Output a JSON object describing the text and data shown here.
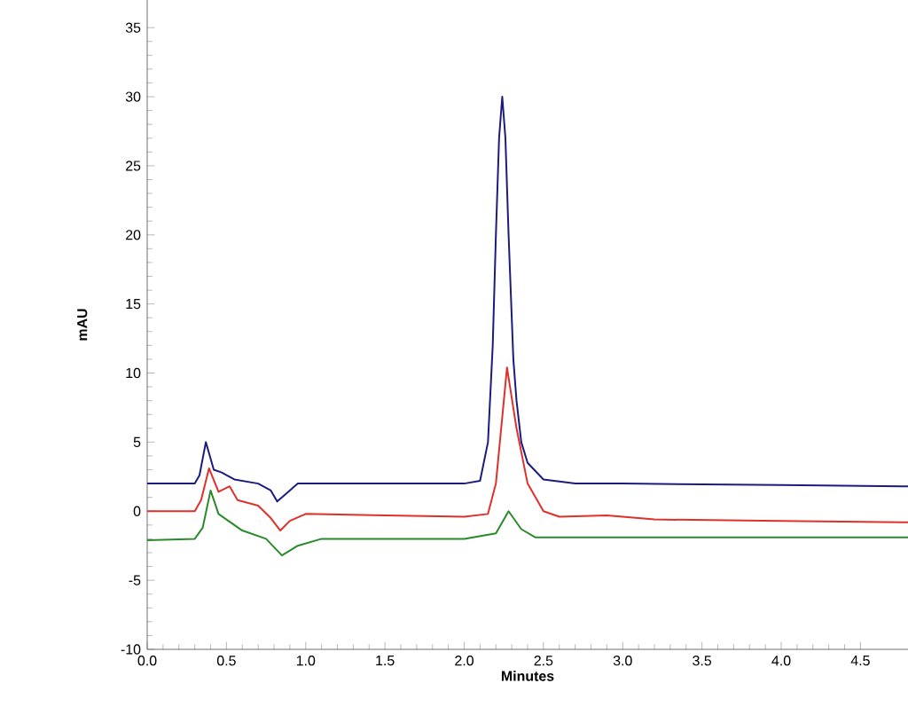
{
  "chart_data": {
    "type": "line",
    "xlabel": "Minutes",
    "ylabel": "mAU",
    "xlim": [
      0,
      4.8
    ],
    "ylim": [
      -10,
      37
    ],
    "xticks": [
      {
        "value": 0,
        "label": "0.0"
      },
      0.5,
      {
        "value": 1,
        "label": "1.0"
      },
      1.5,
      {
        "value": 2,
        "label": "2.0"
      },
      2.5,
      {
        "value": 3,
        "label": "3.0"
      },
      3.5,
      {
        "value": 4,
        "label": "4.0"
      },
      4.5
    ],
    "yticks": [
      -10,
      -5,
      0,
      5,
      10,
      15,
      20,
      25,
      30,
      35
    ],
    "grid": false,
    "marker": "none",
    "line_style": "solid",
    "series": [
      {
        "color": "#1c1c7e",
        "x": [
          0,
          0.3,
          0.33,
          0.37,
          0.42,
          0.47,
          0.55,
          0.7,
          0.78,
          0.82,
          0.88,
          0.95,
          1.5,
          2.0,
          2.1,
          2.15,
          2.18,
          2.2,
          2.22,
          2.24,
          2.26,
          2.28,
          2.31,
          2.33,
          2.36,
          2.4,
          2.5,
          2.7,
          3.0,
          4.0,
          4.8
        ],
        "values": [
          2.0,
          2.0,
          2.6,
          5.0,
          3.0,
          2.8,
          2.3,
          2.0,
          1.5,
          0.7,
          1.3,
          2.0,
          2.0,
          2.0,
          2.2,
          5,
          12,
          20,
          27,
          30,
          27,
          20,
          11,
          8,
          5,
          3.5,
          2.3,
          2.0,
          2.0,
          1.9,
          1.8
        ]
      },
      {
        "color": "#e0302a",
        "x": [
          0,
          0.3,
          0.34,
          0.39,
          0.45,
          0.52,
          0.57,
          0.7,
          0.78,
          0.84,
          0.9,
          1.0,
          1.5,
          2.0,
          2.15,
          2.2,
          2.27,
          2.33,
          2.4,
          2.5,
          2.6,
          2.9,
          3.2,
          4.0,
          4.8
        ],
        "values": [
          0,
          0,
          0.8,
          3.1,
          1.4,
          1.8,
          0.8,
          0.4,
          -0.5,
          -1.4,
          -0.7,
          -0.2,
          -0.3,
          -0.4,
          -0.2,
          2,
          10.4,
          6,
          2,
          0.0,
          -0.4,
          -0.3,
          -0.6,
          -0.7,
          -0.8
        ]
      },
      {
        "color": "#2a8a2a",
        "x": [
          0,
          0.3,
          0.35,
          0.4,
          0.45,
          0.5,
          0.6,
          0.75,
          0.85,
          0.95,
          1.1,
          2.0,
          2.2,
          2.28,
          2.36,
          2.45,
          3.0,
          4.0,
          4.8
        ],
        "values": [
          -2.1,
          -2.0,
          -1.2,
          1.5,
          -0.2,
          -0.6,
          -1.4,
          -2.0,
          -3.2,
          -2.5,
          -2.0,
          -2.0,
          -1.6,
          0.0,
          -1.3,
          -1.9,
          -1.9,
          -1.9,
          -1.9
        ]
      }
    ]
  }
}
